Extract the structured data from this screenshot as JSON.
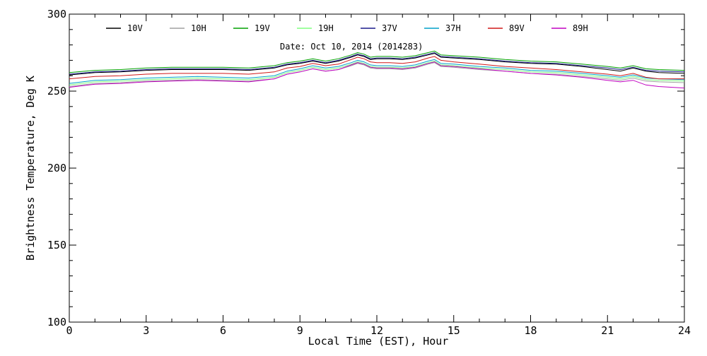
{
  "chart_data": {
    "type": "line",
    "annotation": "Date: Oct 10, 2014 (2014283)",
    "xlabel": "Local Time (EST), Hour",
    "ylabel": "Brightness Temperature, Deg K",
    "xlim": [
      0,
      24
    ],
    "ylim": [
      100,
      300
    ],
    "xticks": [
      0,
      3,
      6,
      9,
      12,
      15,
      18,
      21,
      24
    ],
    "xtick_labels": [
      "0",
      "3",
      "6",
      "9",
      "12",
      "15",
      "18",
      "21",
      "24"
    ],
    "yticks": [
      100,
      150,
      200,
      250,
      300
    ],
    "ytick_labels": [
      "100",
      "150",
      "200",
      "250",
      "300"
    ],
    "grid": false,
    "legend_position": "top",
    "x": [
      0,
      1,
      2,
      3,
      4,
      5,
      6,
      7,
      8,
      8.5,
      9,
      9.5,
      10,
      10.5,
      11,
      11.25,
      11.5,
      11.75,
      12,
      12.5,
      13,
      13.5,
      14,
      14.25,
      14.5,
      15,
      16,
      17,
      18,
      19,
      20,
      21,
      21.5,
      22,
      22.5,
      23,
      24
    ],
    "series": [
      {
        "name": "10V",
        "color": "#000000",
        "values": [
          260.5,
          262,
          262.5,
          263.5,
          264,
          264,
          264,
          263.5,
          265,
          267,
          268,
          269.5,
          268,
          269.5,
          272,
          273.5,
          272.5,
          270.5,
          271,
          271,
          270.5,
          271.5,
          273.5,
          274.5,
          272,
          271.5,
          270.5,
          269,
          268,
          267.5,
          266,
          264,
          263,
          265,
          263,
          262,
          261.5
        ]
      },
      {
        "name": "10H",
        "color": "#a0a0a0",
        "values": [
          253,
          255,
          255.5,
          256.5,
          257,
          257.5,
          257,
          256.5,
          258,
          261,
          262.5,
          264.5,
          263,
          264,
          266.5,
          268,
          267,
          265,
          264.5,
          264.5,
          264,
          265,
          267.5,
          268.5,
          266,
          265.5,
          264,
          263,
          261.5,
          261,
          259.5,
          258,
          257,
          258.5,
          256.5,
          256,
          255.5
        ]
      },
      {
        "name": "19V",
        "color": "#00a000",
        "values": [
          262,
          263.5,
          264,
          265,
          265.5,
          265.5,
          265.5,
          265,
          266.5,
          268.5,
          269.5,
          271,
          269.5,
          271,
          273.5,
          275,
          274,
          272,
          272.5,
          272.5,
          272,
          273,
          275,
          276,
          273.5,
          273,
          272,
          270.5,
          269.5,
          269,
          267.5,
          266,
          265,
          266.5,
          264.5,
          264,
          263.5
        ]
      },
      {
        "name": "19H",
        "color": "#80ff80",
        "values": [
          254,
          256,
          256.5,
          257.5,
          258,
          258.5,
          258,
          257.5,
          259,
          262,
          263.5,
          265.5,
          264,
          265,
          267.5,
          269,
          268,
          266,
          265.5,
          265.5,
          265,
          266,
          268.5,
          269.5,
          267,
          266.5,
          265,
          264,
          262.5,
          262,
          260.5,
          259,
          258,
          259.5,
          257.5,
          257,
          256.5
        ]
      },
      {
        "name": "37V",
        "color": "#1a1a8c",
        "values": [
          261,
          262.5,
          263,
          264,
          264.5,
          264.5,
          264.5,
          264,
          265.5,
          267.5,
          268.5,
          270,
          268.5,
          270,
          272.5,
          274,
          273,
          271,
          271.5,
          271.5,
          271,
          272,
          274,
          275,
          272.5,
          272,
          271,
          269.5,
          268.5,
          268,
          266.5,
          265,
          264,
          265.5,
          263.5,
          263,
          262.5
        ]
      },
      {
        "name": "37H",
        "color": "#00a0c8",
        "values": [
          255,
          257,
          257.5,
          258.5,
          259,
          259.5,
          259,
          258.5,
          260,
          263,
          264.5,
          266.5,
          265,
          266,
          268.5,
          270,
          269,
          267,
          266.5,
          266.5,
          266,
          267,
          269.5,
          270.5,
          268,
          267.5,
          266,
          265,
          263.5,
          263,
          261.5,
          260,
          259,
          260.5,
          258.5,
          258,
          257.5
        ]
      },
      {
        "name": "89V",
        "color": "#d01818",
        "values": [
          258,
          259.5,
          260,
          261,
          261.5,
          261.5,
          261.5,
          261,
          262.5,
          265,
          266,
          268,
          266.5,
          267.5,
          270.5,
          272,
          271,
          269,
          268.5,
          268.5,
          268,
          269,
          271.5,
          272.5,
          270,
          269,
          267.5,
          266,
          265,
          264,
          262.5,
          261,
          260,
          261.5,
          259,
          258,
          258
        ]
      },
      {
        "name": "89H",
        "color": "#c000c0",
        "values": [
          252.5,
          254.5,
          255,
          256,
          256.5,
          257,
          256.5,
          256,
          258,
          261,
          262.5,
          264.5,
          263,
          264,
          267,
          268.5,
          267.5,
          265.5,
          265,
          265,
          264.5,
          265.5,
          268,
          269,
          266.5,
          266,
          264.5,
          263,
          261.5,
          260.5,
          259,
          257,
          256,
          257,
          254,
          253,
          252
        ]
      }
    ]
  }
}
